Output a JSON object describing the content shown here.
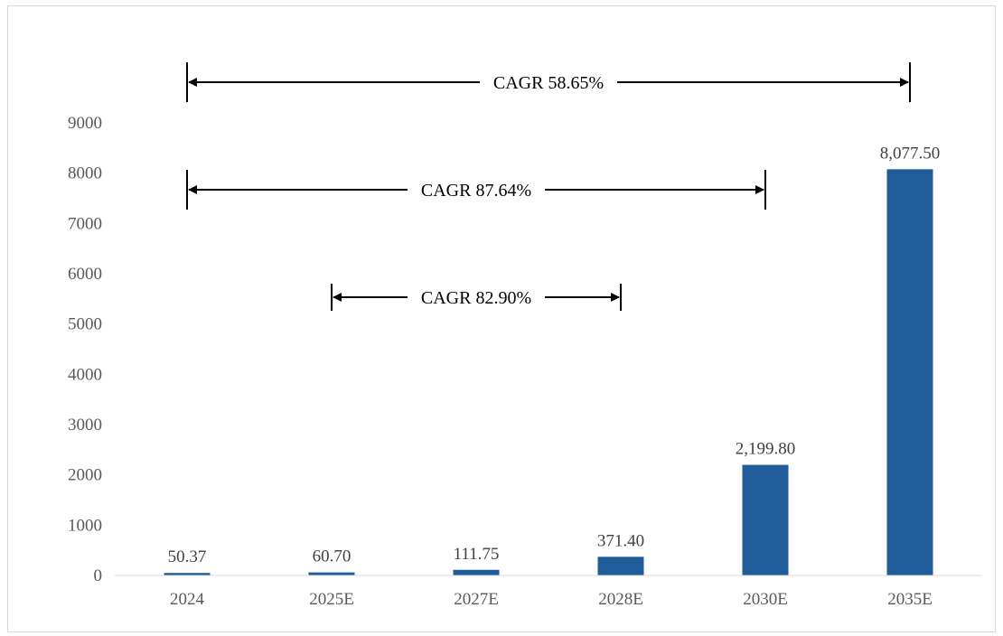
{
  "chart_data": {
    "type": "bar",
    "categories": [
      "2024",
      "2025E",
      "2027E",
      "2028E",
      "2030E",
      "2035E"
    ],
    "values": [
      50.37,
      60.7,
      111.75,
      371.4,
      2199.8,
      8077.5
    ],
    "data_labels": [
      "50.37",
      "60.70",
      "111.75",
      "371.40",
      "2,199.80",
      "8,077.50"
    ],
    "y_ticks": [
      "0",
      "1000",
      "2000",
      "3000",
      "4000",
      "5000",
      "6000",
      "7000",
      "8000",
      "9000"
    ],
    "ylim": [
      0,
      9000
    ],
    "title": "",
    "xlabel": "",
    "ylabel": "",
    "grid": false,
    "legend": "none",
    "bar_color": "#1f5c99",
    "annotations": [
      {
        "label": "CAGR 58.65%",
        "from_category": "2024",
        "to_category": "2035E",
        "arrow": "double"
      },
      {
        "label": "CAGR 87.64%",
        "from_category": "2024",
        "to_category": "2030E",
        "arrow": "double"
      },
      {
        "label": "CAGR 82.90%",
        "from_category": "2025E",
        "to_category": "2028E",
        "arrow": "double"
      }
    ]
  }
}
